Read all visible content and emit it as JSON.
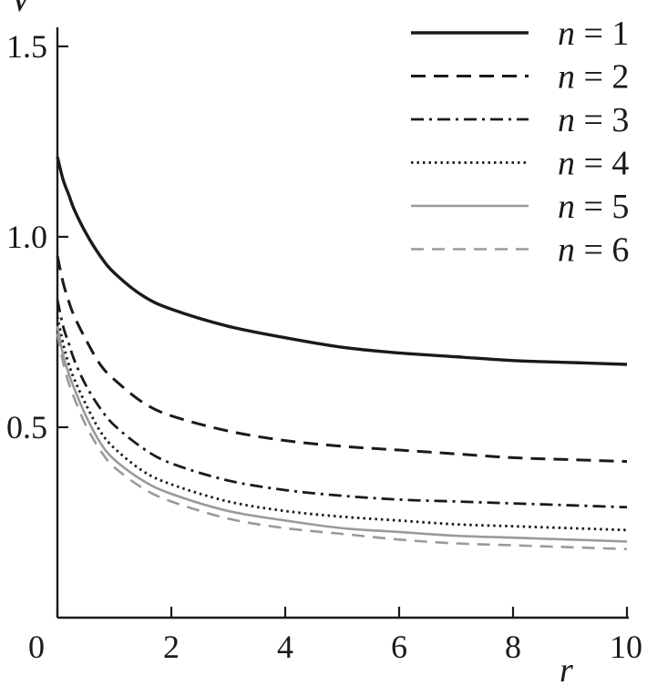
{
  "chart_data": {
    "type": "line",
    "xlabel": "r",
    "ylabel": "V",
    "xlim": [
      0,
      10
    ],
    "ylim": [
      0,
      1.55
    ],
    "x_ticks": [
      0,
      2,
      4,
      6,
      8,
      10
    ],
    "x_tick_labels": [
      "0",
      "2",
      "4",
      "6",
      "8",
      "10"
    ],
    "y_ticks": [
      0.5,
      1.0,
      1.5
    ],
    "y_tick_labels": [
      "0.5",
      "1.0",
      "1.5"
    ],
    "grid": false,
    "legend_position": "top-right",
    "x": [
      0.0,
      0.1,
      0.2,
      0.3,
      0.5,
      0.75,
      1.0,
      1.5,
      2.0,
      3.0,
      4.0,
      5.0,
      6.0,
      7.0,
      8.0,
      9.0,
      10.0
    ],
    "series": [
      {
        "name": "n = 1",
        "name_var": "n",
        "name_rest": " = 1",
        "color": "#1a1a1a",
        "stroke_width": 3.4,
        "dash": "",
        "values": [
          1.21,
          1.15,
          1.11,
          1.07,
          1.01,
          0.95,
          0.905,
          0.845,
          0.81,
          0.765,
          0.735,
          0.71,
          0.695,
          0.685,
          0.675,
          0.67,
          0.665
        ]
      },
      {
        "name": "n = 2",
        "name_var": "n",
        "name_rest": " = 2",
        "color": "#1a1a1a",
        "stroke_width": 3.0,
        "dash": "16 9",
        "values": [
          0.95,
          0.88,
          0.83,
          0.79,
          0.73,
          0.665,
          0.625,
          0.565,
          0.53,
          0.49,
          0.465,
          0.45,
          0.44,
          0.43,
          0.42,
          0.415,
          0.41
        ]
      },
      {
        "name": "n = 3",
        "name_var": "n",
        "name_rest": " = 3",
        "color": "#1a1a1a",
        "stroke_width": 2.8,
        "dash": "14 6 3 6",
        "values": [
          0.835,
          0.765,
          0.72,
          0.675,
          0.61,
          0.55,
          0.505,
          0.445,
          0.405,
          0.36,
          0.335,
          0.32,
          0.31,
          0.305,
          0.3,
          0.295,
          0.29
        ]
      },
      {
        "name": "n = 4",
        "name_var": "n",
        "name_rest": " = 4",
        "color": "#1a1a1a",
        "stroke_width": 2.8,
        "dash": "2.5 4",
        "values": [
          0.79,
          0.72,
          0.665,
          0.625,
          0.56,
          0.49,
          0.445,
          0.385,
          0.35,
          0.305,
          0.28,
          0.265,
          0.255,
          0.245,
          0.24,
          0.235,
          0.23
        ]
      },
      {
        "name": "n = 5",
        "name_var": "n",
        "name_rest": " = 5",
        "color": "#9a9a9a",
        "stroke_width": 2.6,
        "dash": "",
        "values": [
          0.765,
          0.69,
          0.64,
          0.6,
          0.53,
          0.46,
          0.415,
          0.36,
          0.325,
          0.28,
          0.255,
          0.235,
          0.225,
          0.215,
          0.21,
          0.205,
          0.2
        ]
      },
      {
        "name": "n = 6",
        "name_var": "n",
        "name_rest": " = 6",
        "color": "#9a9a9a",
        "stroke_width": 2.6,
        "dash": "14 9",
        "values": [
          0.745,
          0.67,
          0.615,
          0.575,
          0.505,
          0.44,
          0.395,
          0.34,
          0.305,
          0.26,
          0.235,
          0.22,
          0.205,
          0.195,
          0.19,
          0.185,
          0.18
        ]
      }
    ]
  }
}
